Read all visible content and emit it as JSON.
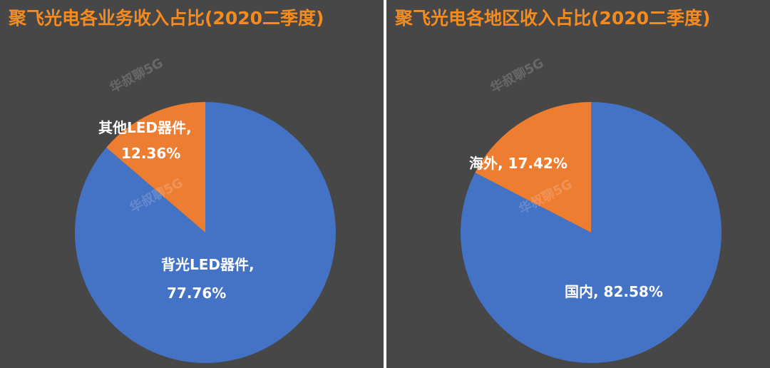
{
  "watermark": "华叔聊5G",
  "colors": {
    "blue": "#4472c4",
    "orange": "#ed7d31",
    "title": "#f58a1f",
    "background": "#474747"
  },
  "chart_data": [
    {
      "type": "pie",
      "title": "聚飞光电各业务收入占比(2020二季度)",
      "slices": [
        {
          "label": "背光LED器件,",
          "value_label": "77.76%",
          "value": 77.76,
          "color": "#4472c4"
        },
        {
          "label": "其他LED器件,",
          "value_label": "12.36%",
          "value": 12.36,
          "color": "#ed7d31"
        }
      ]
    },
    {
      "type": "pie",
      "title": "聚飞光电各地区收入占比(2020二季度)",
      "slices": [
        {
          "label": "国内, 82.58%",
          "value": 82.58,
          "color": "#4472c4"
        },
        {
          "label": "海外, 17.42%",
          "value": 17.42,
          "color": "#ed7d31"
        }
      ]
    }
  ]
}
